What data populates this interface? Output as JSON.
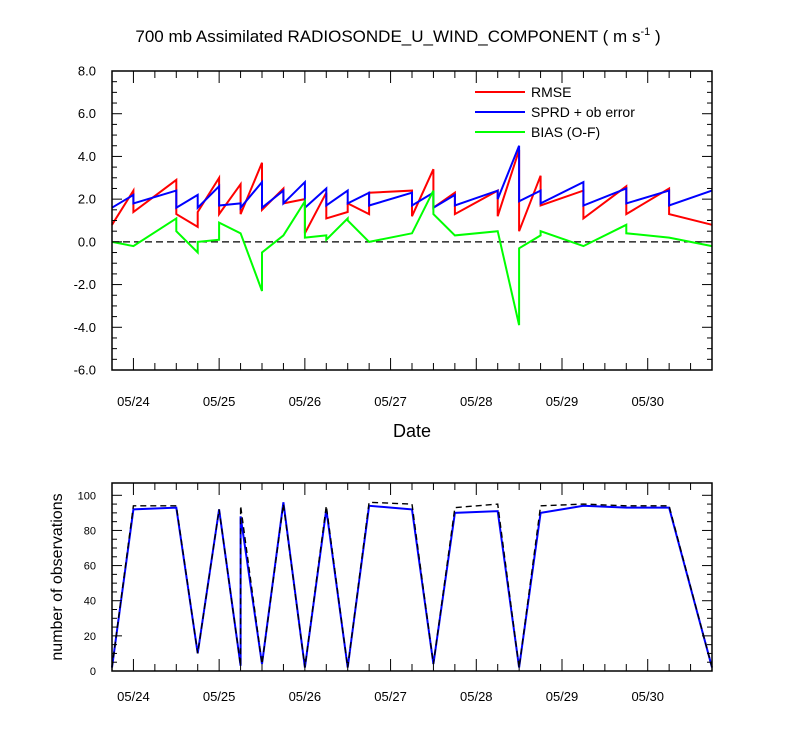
{
  "chart_data": [
    {
      "type": "line",
      "title": "700 mb Assimilated RADIOSONDE_U_WIND_COMPONENT ( m s",
      "title_sup": "-1",
      "title_end": " )",
      "xlabel": "Date",
      "ylabel": "",
      "xlim": [
        0,
        7
      ],
      "ylim": [
        -6,
        8
      ],
      "yticks": [
        "8.0",
        "6.0",
        "4.0",
        "2.0",
        "0.0",
        "-2.0",
        "-4.0",
        "-6.0"
      ],
      "ytick_values": [
        8,
        6,
        4,
        2,
        0,
        -2,
        -4,
        -6
      ],
      "xtick_labels": [
        "05/24",
        "05/25",
        "05/26",
        "05/27",
        "05/28",
        "05/29",
        "05/30"
      ],
      "xtick_values": [
        0.25,
        1.25,
        2.25,
        3.25,
        4.25,
        5.25,
        6.25
      ],
      "zero_line": "dashed",
      "legend_position": "top-right",
      "series": [
        {
          "name": "RMSE",
          "color": "#ff0000",
          "x": [
            0,
            0.25,
            0.25,
            0.75,
            0.75,
            1.0,
            1.0,
            1.25,
            1.25,
            1.5,
            1.5,
            1.75,
            1.75,
            2.0,
            2.0,
            2.25,
            2.25,
            2.5,
            2.5,
            2.75,
            2.75,
            3.0,
            3.0,
            3.5,
            3.5,
            3.75,
            3.75,
            4.0,
            4.0,
            4.5,
            4.5,
            4.75,
            4.75,
            5.0,
            5.0,
            5.5,
            5.5,
            6.0,
            6.0,
            6.5,
            6.5,
            7.0
          ],
          "y": [
            0.8,
            2.4,
            1.4,
            2.9,
            1.3,
            0.7,
            1.4,
            3.0,
            1.3,
            2.7,
            1.3,
            3.7,
            1.5,
            2.5,
            1.8,
            2.0,
            0.4,
            2.3,
            1.1,
            1.4,
            1.8,
            1.3,
            2.3,
            2.4,
            1.2,
            3.4,
            1.6,
            2.3,
            1.3,
            2.4,
            1.2,
            4.3,
            0.5,
            3.1,
            1.7,
            2.4,
            1.1,
            2.6,
            1.3,
            2.5,
            1.3,
            0.8
          ]
        },
        {
          "name": "SPRD + ob error",
          "color": "#0000ff",
          "x": [
            0,
            0.25,
            0.25,
            0.75,
            0.75,
            1.0,
            1.0,
            1.25,
            1.25,
            1.5,
            1.5,
            1.75,
            1.75,
            2.0,
            2.0,
            2.25,
            2.25,
            2.5,
            2.5,
            2.75,
            2.75,
            3.0,
            3.0,
            3.5,
            3.5,
            3.75,
            3.75,
            4.0,
            4.0,
            4.5,
            4.5,
            4.75,
            4.75,
            5.0,
            5.0,
            5.5,
            5.5,
            6.0,
            6.0,
            6.5,
            6.5,
            7.0
          ],
          "y": [
            1.6,
            2.2,
            1.8,
            2.4,
            1.6,
            2.2,
            1.6,
            2.6,
            1.7,
            1.8,
            1.6,
            2.8,
            1.6,
            2.4,
            1.8,
            2.8,
            1.6,
            2.5,
            1.7,
            2.4,
            1.8,
            2.3,
            1.7,
            2.3,
            1.7,
            2.3,
            1.6,
            2.2,
            1.7,
            2.4,
            2.0,
            4.5,
            1.9,
            2.4,
            1.8,
            2.8,
            1.7,
            2.5,
            1.8,
            2.4,
            1.7,
            2.4
          ]
        },
        {
          "name": "BIAS (O-F)",
          "color": "#00ff00",
          "x": [
            0,
            0.25,
            0.75,
            0.75,
            1.0,
            1.0,
            1.25,
            1.25,
            1.5,
            1.75,
            1.75,
            2.0,
            2.25,
            2.25,
            2.5,
            2.5,
            2.75,
            2.75,
            3.0,
            3.5,
            3.75,
            3.75,
            4.0,
            4.5,
            4.75,
            4.75,
            5.0,
            5.0,
            5.5,
            6.0,
            6.0,
            6.5,
            7.0
          ],
          "y": [
            0.0,
            -0.2,
            1.1,
            0.5,
            -0.5,
            0.0,
            0.1,
            0.9,
            0.4,
            -2.3,
            -0.5,
            0.3,
            1.9,
            0.2,
            0.3,
            0.1,
            1.1,
            1.0,
            0.0,
            0.4,
            2.4,
            1.3,
            0.3,
            0.5,
            -3.9,
            -0.3,
            0.3,
            0.5,
            -0.2,
            0.8,
            0.4,
            0.2,
            -0.2
          ]
        }
      ]
    },
    {
      "type": "line",
      "title": "",
      "xlabel": "",
      "ylabel": "number of observations",
      "xlim": [
        0,
        7
      ],
      "ylim": [
        0,
        107
      ],
      "yticks": [
        "100",
        "80",
        "60",
        "40",
        "20",
        "0"
      ],
      "ytick_values": [
        100,
        80,
        60,
        40,
        20,
        0
      ],
      "xtick_labels": [
        "05/24",
        "05/25",
        "05/26",
        "05/27",
        "05/28",
        "05/29",
        "05/30"
      ],
      "xtick_values": [
        0.25,
        1.25,
        2.25,
        3.25,
        4.25,
        5.25,
        6.25
      ],
      "series": [
        {
          "name": "",
          "color": "#000000",
          "dashed": true,
          "x": [
            0,
            0.25,
            0.75,
            1.0,
            1.25,
            1.5,
            1.5,
            1.75,
            2.0,
            2.25,
            2.5,
            2.75,
            3.0,
            3.5,
            3.75,
            4.0,
            4.5,
            4.75,
            5.0,
            5.5,
            6.0,
            6.5,
            7.0
          ],
          "y": [
            2,
            94,
            94,
            10,
            92,
            3,
            94,
            4,
            95,
            2,
            94,
            2,
            96,
            95,
            4,
            93,
            95,
            2,
            94,
            95,
            94,
            94,
            2
          ]
        },
        {
          "name": "",
          "color": "#0000ff",
          "dashed": false,
          "x": [
            0,
            0.25,
            0.75,
            1.0,
            1.25,
            1.5,
            1.5,
            1.75,
            2.0,
            2.25,
            2.5,
            2.75,
            3.0,
            3.5,
            3.75,
            4.0,
            4.5,
            4.75,
            5.0,
            5.5,
            6.0,
            6.5,
            7.0
          ],
          "y": [
            2,
            92,
            93,
            10,
            92,
            3,
            88,
            4,
            96,
            2,
            92,
            2,
            94,
            92,
            4,
            90,
            91,
            2,
            90,
            94,
            93,
            93,
            2
          ]
        }
      ]
    }
  ]
}
